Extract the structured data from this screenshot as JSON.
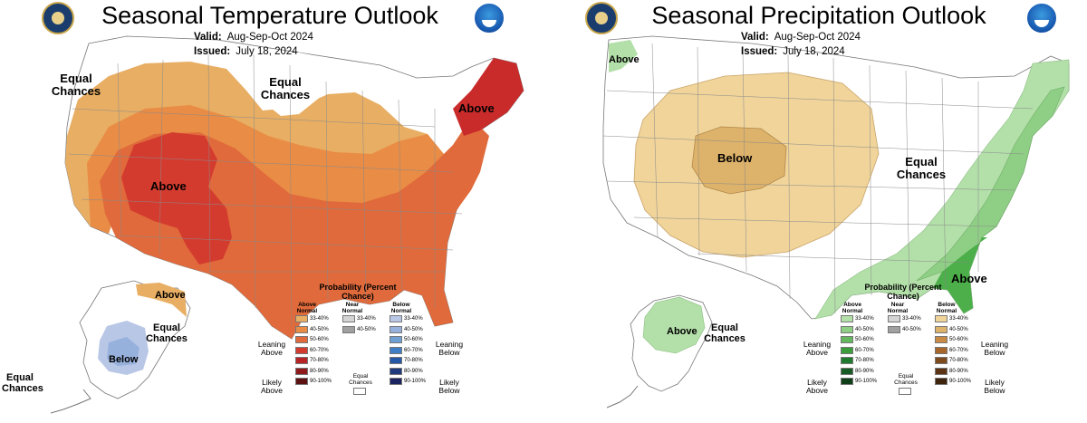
{
  "left": {
    "title": "Seasonal Temperature Outlook",
    "valid_label": "Valid:",
    "valid_value": "Aug-Sep-Oct 2024",
    "issued_label": "Issued:",
    "issued_value": "July 18, 2024",
    "labels": {
      "above_west": "Above",
      "above_northeast": "Above",
      "above_alaska": "Above",
      "below_alaska": "Below",
      "ec_nw": "Equal Chances",
      "ec_north": "Equal Chances",
      "ec_alaska": "Equal Chances",
      "ec_hawaii": "Equal Chances"
    },
    "legend": {
      "title": "Probability (Percent Chance)",
      "col_above": "Above Normal",
      "col_near": "Near Normal",
      "col_below": "Below Normal",
      "leaning_above": "Leaning Above",
      "likely_above": "Likely Above",
      "leaning_below": "Leaning Below",
      "likely_below": "Likely Below",
      "equal_chances": "Equal Chances",
      "ranges": [
        "33-40%",
        "40-50%",
        "50-60%",
        "60-70%",
        "70-80%",
        "80-90%",
        "90-100%"
      ],
      "near_ranges": [
        "33-40%",
        "40-50%"
      ],
      "above_colors": [
        "#e8ae63",
        "#e98c45",
        "#e06a3b",
        "#d43b2f",
        "#b82325",
        "#8f1a1c",
        "#5c1212"
      ],
      "near_colors": [
        "#d4d4d4",
        "#a0a0a0"
      ],
      "below_colors": [
        "#b9c7e6",
        "#97b1dd",
        "#6ea0d4",
        "#3f7ec4",
        "#2457a6",
        "#1e3a7d",
        "#1b2360"
      ]
    }
  },
  "right": {
    "title": "Seasonal Precipitation Outlook",
    "valid_label": "Valid:",
    "valid_value": "Aug-Sep-Oct 2024",
    "issued_label": "Issued:",
    "issued_value": "July 18, 2024",
    "labels": {
      "above_nw": "Above",
      "below_west": "Below",
      "ec_central": "Equal Chances",
      "above_southeast": "Above",
      "above_alaska": "Above",
      "ec_alaska": "Equal Chances"
    },
    "legend": {
      "title": "Probability (Percent Chance)",
      "col_above": "Above Normal",
      "col_near": "Near Normal",
      "col_below": "Below Normal",
      "leaning_above": "Leaning Above",
      "likely_above": "Likely Above",
      "leaning_below": "Leaning Below",
      "likely_below": "Likely Below",
      "equal_chances": "Equal Chances",
      "ranges": [
        "33-40%",
        "40-50%",
        "50-60%",
        "60-70%",
        "70-80%",
        "80-90%",
        "90-100%"
      ],
      "near_ranges": [
        "33-40%",
        "40-50%"
      ],
      "above_colors": [
        "#b3dfa9",
        "#8fcf85",
        "#64b85e",
        "#3b9c3c",
        "#1f7a2f",
        "#175c25",
        "#0f3f18"
      ],
      "near_colors": [
        "#d4d4d4",
        "#a0a0a0"
      ],
      "below_colors": [
        "#f0d49a",
        "#ddb26a",
        "#c98b44",
        "#a8672a",
        "#7e4a1e",
        "#5c3415",
        "#3e230d"
      ]
    }
  }
}
